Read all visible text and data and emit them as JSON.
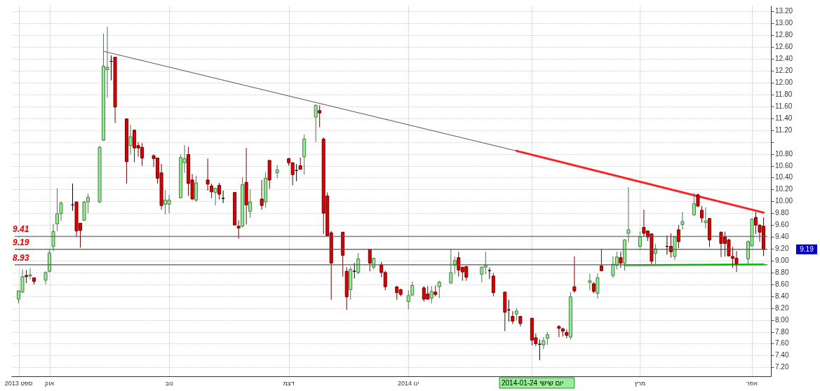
{
  "chart_data": {
    "type": "candlestick",
    "x": [
      "2013-09-23",
      "2013-09-24",
      "2013-09-25",
      "2013-09-26",
      "2013-09-27",
      "2013-09-30",
      "2013-10-01",
      "2013-10-02",
      "2013-10-03",
      "2013-10-04",
      "2013-10-07",
      "2013-10-08",
      "2013-10-09",
      "2013-10-10",
      "2013-10-11",
      "2013-10-14",
      "2013-10-15",
      "2013-10-16",
      "2013-10-17",
      "2013-10-18",
      "2013-10-21",
      "2013-10-22",
      "2013-10-23",
      "2013-10-24",
      "2013-10-25",
      "2013-10-28",
      "2013-10-29",
      "2013-10-30",
      "2013-10-31",
      "2013-11-01",
      "2013-11-04",
      "2013-11-05",
      "2013-11-06",
      "2013-11-07",
      "2013-11-08",
      "2013-11-11",
      "2013-11-12",
      "2013-11-13",
      "2013-11-14",
      "2013-11-15",
      "2013-11-18",
      "2013-11-19",
      "2013-11-20",
      "2013-11-21",
      "2013-11-22",
      "2013-11-25",
      "2013-11-26",
      "2013-11-27",
      "2013-11-29",
      "2013-12-02",
      "2013-12-03",
      "2013-12-04",
      "2013-12-05",
      "2013-12-06",
      "2013-12-09",
      "2013-12-10",
      "2013-12-11",
      "2013-12-12",
      "2013-12-13",
      "2013-12-16",
      "2013-12-17",
      "2013-12-18",
      "2013-12-19",
      "2013-12-20",
      "2013-12-23",
      "2013-12-24",
      "2013-12-26",
      "2013-12-27",
      "2013-12-30",
      "2013-12-31",
      "2014-01-02",
      "2014-01-03",
      "2014-01-06",
      "2014-01-07",
      "2014-01-08",
      "2014-01-09",
      "2014-01-10",
      "2014-01-13",
      "2014-01-14",
      "2014-01-15",
      "2014-01-16",
      "2014-01-17",
      "2014-01-21",
      "2014-01-22",
      "2014-01-23",
      "2014-01-24",
      "2014-01-27",
      "2014-01-28",
      "2014-01-29",
      "2014-01-30",
      "2014-01-31",
      "2014-02-03",
      "2014-02-04",
      "2014-02-05",
      "2014-02-06",
      "2014-02-07",
      "2014-02-10",
      "2014-02-11",
      "2014-02-12",
      "2014-02-13",
      "2014-02-14",
      "2014-02-18",
      "2014-02-19",
      "2014-02-20",
      "2014-02-21",
      "2014-02-24",
      "2014-02-25",
      "2014-02-26",
      "2014-02-27",
      "2014-02-28",
      "2014-03-03",
      "2014-03-04",
      "2014-03-05",
      "2014-03-06",
      "2014-03-07",
      "2014-03-10",
      "2014-03-11",
      "2014-03-12",
      "2014-03-13",
      "2014-03-14",
      "2014-03-17",
      "2014-03-18",
      "2014-03-19",
      "2014-03-20",
      "2014-03-21",
      "2014-03-24",
      "2014-03-25",
      "2014-03-26",
      "2014-03-27",
      "2014-03-28",
      "2014-03-31",
      "2014-04-01",
      "2014-04-02",
      "2014-04-03",
      "2014-04-04"
    ],
    "ohlc": [
      [
        8.35,
        8.5,
        8.28,
        8.49
      ],
      [
        8.47,
        8.85,
        8.45,
        8.73
      ],
      [
        8.75,
        8.84,
        8.62,
        8.73
      ],
      [
        8.74,
        8.87,
        8.68,
        8.76
      ],
      [
        8.71,
        8.71,
        8.6,
        8.65
      ],
      [
        8.67,
        8.82,
        8.6,
        8.8
      ],
      [
        8.82,
        9.18,
        8.8,
        9.13
      ],
      [
        9.24,
        9.62,
        9.16,
        9.49
      ],
      [
        9.62,
        10.22,
        9.5,
        9.79
      ],
      [
        9.79,
        10.0,
        9.67,
        9.97
      ],
      [
        9.94,
        10.3,
        9.84,
        9.94
      ],
      [
        9.99,
        9.99,
        9.4,
        9.5
      ],
      [
        9.63,
        9.63,
        9.22,
        9.51
      ],
      [
        9.68,
        10.0,
        9.67,
        9.99
      ],
      [
        9.99,
        10.13,
        9.8,
        10.07
      ],
      [
        9.99,
        10.94,
        9.97,
        10.91
      ],
      [
        11.03,
        12.83,
        11.02,
        12.28
      ],
      [
        12.22,
        12.94,
        11.75,
        12.26
      ],
      [
        12.36,
        12.46,
        12.04,
        12.36
      ],
      [
        12.43,
        12.43,
        11.32,
        11.59
      ],
      [
        11.39,
        11.39,
        10.3,
        10.67
      ],
      [
        10.94,
        11.29,
        10.79,
        11.09
      ],
      [
        11.2,
        11.21,
        10.66,
        10.9
      ],
      [
        10.94,
        11.0,
        10.75,
        10.9
      ],
      [
        10.91,
        10.98,
        10.6,
        10.73
      ],
      [
        10.77,
        10.79,
        10.58,
        10.72
      ],
      [
        10.73,
        10.73,
        10.3,
        10.39
      ],
      [
        10.48,
        10.63,
        9.86,
        9.93
      ],
      [
        9.95,
        10.19,
        9.78,
        10.02
      ],
      [
        9.95,
        10.11,
        9.8,
        10.02
      ],
      [
        10.06,
        10.79,
        10.05,
        10.74
      ],
      [
        10.65,
        10.95,
        10.48,
        10.72
      ],
      [
        10.79,
        10.92,
        10.09,
        10.3
      ],
      [
        10.36,
        10.46,
        10.02,
        10.04
      ],
      [
        10.02,
        10.43,
        9.99,
        10.31
      ],
      [
        10.36,
        10.72,
        10.18,
        10.29
      ],
      [
        10.26,
        10.3,
        10.05,
        10.16
      ],
      [
        10.15,
        10.23,
        9.93,
        10.22
      ],
      [
        10.27,
        10.31,
        10.03,
        10.12
      ],
      [
        10.05,
        10.18,
        9.97,
        10.05
      ],
      [
        10.15,
        10.15,
        9.6,
        9.6
      ],
      [
        9.58,
        9.68,
        9.37,
        9.55
      ],
      [
        9.58,
        10.41,
        9.56,
        10.28
      ],
      [
        10.32,
        10.9,
        9.61,
        9.94
      ],
      [
        9.83,
        10.2,
        9.72,
        9.99
      ],
      [
        10.04,
        10.36,
        9.86,
        9.93
      ],
      [
        9.99,
        10.49,
        9.89,
        10.39
      ],
      [
        10.69,
        10.69,
        10.21,
        10.36
      ],
      [
        10.48,
        10.61,
        10.39,
        10.53
      ],
      [
        10.72,
        10.73,
        10.6,
        10.65
      ],
      [
        10.65,
        10.66,
        10.27,
        10.45
      ],
      [
        10.52,
        10.63,
        10.34,
        10.52
      ],
      [
        10.6,
        10.74,
        10.54,
        10.54
      ],
      [
        10.75,
        11.13,
        10.45,
        11.05
      ],
      [
        11.42,
        11.63,
        11.0,
        11.62
      ],
      [
        11.53,
        11.62,
        11.25,
        11.49
      ],
      [
        11.05,
        11.08,
        9.45,
        9.8
      ],
      [
        10.09,
        10.15,
        9.42,
        9.42
      ],
      [
        9.47,
        9.5,
        8.34,
        8.96
      ],
      [
        9.48,
        9.48,
        8.73,
        9.09
      ],
      [
        8.82,
        8.89,
        8.17,
        8.39
      ],
      [
        8.51,
        8.9,
        8.34,
        8.85
      ],
      [
        8.82,
        8.96,
        8.7,
        8.82
      ],
      [
        8.8,
        9.13,
        8.77,
        9.03
      ],
      [
        9.19,
        9.19,
        8.82,
        8.96
      ],
      [
        8.89,
        9.05,
        8.85,
        9.04
      ],
      [
        8.93,
        8.98,
        8.72,
        8.8
      ],
      [
        8.8,
        8.83,
        8.5,
        8.56
      ],
      [
        8.56,
        8.57,
        8.34,
        8.46
      ],
      [
        8.51,
        8.53,
        8.4,
        8.43
      ],
      [
        8.31,
        8.5,
        8.18,
        8.41
      ],
      [
        8.42,
        8.65,
        8.4,
        8.58
      ],
      [
        8.54,
        8.57,
        8.31,
        8.35
      ],
      [
        8.44,
        8.57,
        8.34,
        8.35
      ],
      [
        8.37,
        8.57,
        8.28,
        8.48
      ],
      [
        8.47,
        8.58,
        8.4,
        8.43
      ],
      [
        8.56,
        8.66,
        8.37,
        8.64
      ],
      [
        8.62,
        9.2,
        8.62,
        8.8
      ],
      [
        8.92,
        9.07,
        8.77,
        9.0
      ],
      [
        9.05,
        9.15,
        8.73,
        8.84
      ],
      [
        8.89,
        8.89,
        8.66,
        8.81
      ],
      [
        8.9,
        8.91,
        8.66,
        8.72
      ],
      [
        8.77,
        8.9,
        8.63,
        8.89
      ],
      [
        8.89,
        9.15,
        8.77,
        8.92
      ],
      [
        8.83,
        8.88,
        8.69,
        8.83
      ],
      [
        8.74,
        8.79,
        8.4,
        8.46
      ],
      [
        8.47,
        8.47,
        7.81,
        8.13
      ],
      [
        8.17,
        8.34,
        7.97,
        8.17
      ],
      [
        8.06,
        8.15,
        7.93,
        7.98
      ],
      [
        8.1,
        8.2,
        7.99,
        8.15
      ],
      [
        8.06,
        8.07,
        7.89,
        7.94
      ],
      [
        8.03,
        8.03,
        7.57,
        7.66
      ],
      [
        7.7,
        7.77,
        7.56,
        7.6
      ],
      [
        7.59,
        7.67,
        7.32,
        7.59
      ],
      [
        7.58,
        7.71,
        7.51,
        7.65
      ],
      [
        7.69,
        7.8,
        7.58,
        7.75
      ],
      [
        7.89,
        7.91,
        7.71,
        7.86
      ],
      [
        7.85,
        7.87,
        7.72,
        7.81
      ],
      [
        7.79,
        7.84,
        7.69,
        7.74
      ],
      [
        7.71,
        8.47,
        7.67,
        8.39
      ],
      [
        8.56,
        9.07,
        8.46,
        8.49
      ],
      [
        8.63,
        8.78,
        8.5,
        8.66
      ],
      [
        8.61,
        8.64,
        8.45,
        8.48
      ],
      [
        8.45,
        8.78,
        8.36,
        8.71
      ],
      [
        8.91,
        9.2,
        8.82,
        8.83
      ],
      [
        8.75,
        9.07,
        8.71,
        8.94
      ],
      [
        8.92,
        9.15,
        8.85,
        9.06
      ],
      [
        9.05,
        9.15,
        8.88,
        8.96
      ],
      [
        8.96,
        9.36,
        8.83,
        9.35
      ],
      [
        9.46,
        10.24,
        9.31,
        9.52
      ],
      [
        9.24,
        9.49,
        9.2,
        9.4
      ],
      [
        9.56,
        9.86,
        9.4,
        9.46
      ],
      [
        9.5,
        9.51,
        9.33,
        9.4
      ],
      [
        9.45,
        9.46,
        8.94,
        8.99
      ],
      [
        9.12,
        9.28,
        8.94,
        9.2
      ],
      [
        9.24,
        9.42,
        9.1,
        9.24
      ],
      [
        9.24,
        9.46,
        9.05,
        9.15
      ],
      [
        9.07,
        9.41,
        9.01,
        9.4
      ],
      [
        9.52,
        9.6,
        9.21,
        9.32
      ],
      [
        9.61,
        9.82,
        9.52,
        9.66
      ],
      [
        9.77,
        10.14,
        9.76,
        9.96
      ],
      [
        10.11,
        10.13,
        9.9,
        9.92
      ],
      [
        9.85,
        9.92,
        9.64,
        9.72
      ],
      [
        9.64,
        9.9,
        9.54,
        9.67
      ],
      [
        9.71,
        9.72,
        9.23,
        9.35
      ],
      [
        9.48,
        9.49,
        9.06,
        9.29
      ],
      [
        9.4,
        9.49,
        9.07,
        9.29
      ],
      [
        9.35,
        9.37,
        9.07,
        9.08
      ],
      [
        9.07,
        9.23,
        8.88,
        9.04
      ],
      [
        9.04,
        9.16,
        8.81,
        8.95
      ],
      [
        9.03,
        9.34,
        8.93,
        9.32
      ],
      [
        9.25,
        9.71,
        9.23,
        9.7
      ],
      [
        9.73,
        9.82,
        9.45,
        9.6
      ],
      [
        9.6,
        9.61,
        9.32,
        9.48
      ],
      [
        9.58,
        9.73,
        9.08,
        9.19
      ]
    ],
    "colors": [
      "#90ee90",
      "#90ee90",
      "#dd0000",
      "#90ee90",
      "#dd0000",
      "#90ee90",
      "#90ee90",
      "#90ee90",
      "#90ee90",
      "#90ee90",
      "#000000",
      "#dd0000",
      "#dd0000",
      "#90ee90",
      "#90ee90",
      "#90ee90",
      "#90ee90",
      "#90ee90",
      "#000000",
      "#dd0000",
      "#dd0000",
      "#90ee90",
      "#dd0000",
      "#dd0000",
      "#dd0000",
      "#dd0000",
      "#dd0000",
      "#dd0000",
      "#90ee90",
      "#90ee90",
      "#90ee90",
      "#90ee90",
      "#dd0000",
      "#dd0000",
      "#90ee90",
      "#dd0000",
      "#dd0000",
      "#90ee90",
      "#dd0000",
      "#000000",
      "#dd0000",
      "#dd0000",
      "#90ee90",
      "#dd0000",
      "#90ee90",
      "#dd0000",
      "#90ee90",
      "#dd0000",
      "#90ee90",
      "#dd0000",
      "#dd0000",
      "#000000",
      "#dd0000",
      "#90ee90",
      "#90ee90",
      "#dd0000",
      "#dd0000",
      "#dd0000",
      "#dd0000",
      "#dd0000",
      "#dd0000",
      "#90ee90",
      "#000000",
      "#90ee90",
      "#dd0000",
      "#90ee90",
      "#dd0000",
      "#dd0000",
      "#dd0000",
      "#dd0000",
      "#90ee90",
      "#90ee90",
      "#dd0000",
      "#dd0000",
      "#90ee90",
      "#dd0000",
      "#90ee90",
      "#90ee90",
      "#90ee90",
      "#dd0000",
      "#dd0000",
      "#dd0000",
      "#90ee90",
      "#90ee90",
      "#000000",
      "#dd0000",
      "#dd0000",
      "#000000",
      "#dd0000",
      "#90ee90",
      "#dd0000",
      "#dd0000",
      "#dd0000",
      "#000000",
      "#90ee90",
      "#90ee90",
      "#dd0000",
      "#dd0000",
      "#dd0000",
      "#90ee90",
      "#dd0000",
      "#90ee90",
      "#dd0000",
      "#90ee90",
      "#dd0000",
      "#90ee90",
      "#90ee90",
      "#dd0000",
      "#90ee90",
      "#90ee90",
      "#90ee90",
      "#dd0000",
      "#dd0000",
      "#dd0000",
      "#90ee90",
      "#000000",
      "#dd0000",
      "#90ee90",
      "#dd0000",
      "#90ee90",
      "#90ee90",
      "#dd0000",
      "#dd0000",
      "#90ee90",
      "#dd0000",
      "#dd0000",
      "#dd0000",
      "#dd0000",
      "#dd0000",
      "#dd0000",
      "#90ee90",
      "#90ee90",
      "#dd0000",
      "#dd0000",
      "#dd0000"
    ],
    "series": [
      {
        "type": "line",
        "x": [
          "2013-10-15",
          "2014-01-30"
        ],
        "values": [
          12.53,
          10.85
        ],
        "color": "#555555"
      },
      {
        "type": "line",
        "x": [
          "2014-01-30",
          "2014-04-04"
        ],
        "values": [
          10.85,
          9.81
        ],
        "color": "#ff2020"
      },
      {
        "type": "line",
        "x": [
          "2014-02-27",
          "2014-04-04"
        ],
        "values": [
          8.92,
          8.94
        ],
        "color": "#33ee33"
      }
    ],
    "xlim": [
      "2013-09-22",
      "2014-04-05"
    ],
    "ylim": [
      7.05,
      13.3
    ],
    "yticks": [
      {
        "value": 7.2,
        "label": "7.20"
      },
      {
        "value": 7.4,
        "label": "7.40"
      },
      {
        "value": 7.6,
        "label": "7.60"
      },
      {
        "value": 7.8,
        "label": "7.80"
      },
      {
        "value": 8,
        "label": "8.00"
      },
      {
        "value": 8.2,
        "label": "8.20"
      },
      {
        "value": 8.4,
        "label": "8.40"
      },
      {
        "value": 8.6,
        "label": "8.60"
      },
      {
        "value": 8.8,
        "label": "8.80"
      },
      {
        "value": 9,
        "label": "9.00"
      },
      {
        "value": 9.2,
        "label": "9.20"
      },
      {
        "value": 9.4,
        "label": "9.40"
      },
      {
        "value": 9.6,
        "label": "9.60"
      },
      {
        "value": 9.8,
        "label": "9.80"
      },
      {
        "value": 10,
        "label": "10.00"
      },
      {
        "value": 10.2,
        "label": "10.20"
      },
      {
        "value": 10.4,
        "label": "10.40"
      },
      {
        "value": 10.6,
        "label": "10.60"
      },
      {
        "value": 10.8,
        "label": "10.80"
      },
      {
        "value": 11,
        "label": null
      },
      {
        "value": 11.2,
        "label": "11.20"
      },
      {
        "value": 11.4,
        "label": "11.40"
      },
      {
        "value": 11.6,
        "label": "11.60"
      },
      {
        "value": 11.8,
        "label": "11.80"
      },
      {
        "value": 12,
        "label": "12.00"
      },
      {
        "value": 12.2,
        "label": "12.20"
      },
      {
        "value": 12.4,
        "label": "12.40"
      },
      {
        "value": 12.6,
        "label": "12.60"
      },
      {
        "value": 12.8,
        "label": "12.80"
      },
      {
        "value": 13,
        "label": "13.00"
      },
      {
        "value": 13.2,
        "label": "13.20"
      }
    ],
    "xticks": [
      {
        "value": "2013-09-23",
        "label": "ספט 2013"
      },
      {
        "value": "2013-10-01",
        "label": "אוק"
      },
      {
        "value": "2013-11-01",
        "label": "נוב"
      },
      {
        "value": "2013-12-02",
        "label": "דצמ"
      },
      {
        "value": "2014-01-02",
        "label": "ינו 2014"
      },
      {
        "value": "2014-02-03",
        "label": null
      },
      {
        "value": "2014-03-03",
        "label": "מרץ"
      },
      {
        "value": "2014-04-01",
        "label": "אפר"
      }
    ],
    "ref_lines": [
      {
        "axis": "y",
        "value": 9.41,
        "label": "9.41",
        "color": "#555555"
      },
      {
        "axis": "y",
        "value": 9.19,
        "label": "9.19",
        "color": "#555555"
      },
      {
        "axis": "y",
        "value": 8.93,
        "label": "8.93",
        "color": "#555555"
      }
    ],
    "annotations": [
      "יום שישי 2014-01-24",
      "9.19"
    ],
    "grid": true
  }
}
